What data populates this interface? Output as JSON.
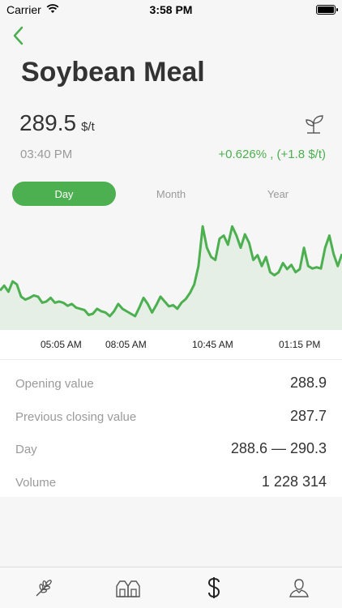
{
  "status_bar": {
    "carrier": "Carrier",
    "time": "3:58 PM"
  },
  "commodity": {
    "name": "Soybean Meal",
    "price": "289.5",
    "unit": "$/t",
    "time": "03:40 PM",
    "change": "+0.626% , (+1.8 $/t)"
  },
  "segments": [
    "Day",
    "Month",
    "Year"
  ],
  "selected_segment": "Day",
  "colors": {
    "accent": "#4caf50",
    "muted": "#9a9a9a",
    "text": "#333333"
  },
  "chart_data": {
    "type": "line",
    "xlabel": "",
    "ylabel": "",
    "tick_labels": [
      "05:05 AM",
      "08:05 AM",
      "10:45 AM",
      "01:15 PM"
    ],
    "grid": false,
    "values": [
      288.7,
      288.78,
      288.68,
      288.85,
      288.8,
      288.6,
      288.55,
      288.58,
      288.62,
      288.6,
      288.5,
      288.52,
      288.58,
      288.5,
      288.52,
      288.5,
      288.45,
      288.48,
      288.42,
      288.4,
      288.38,
      288.3,
      288.32,
      288.4,
      288.36,
      288.34,
      288.28,
      288.36,
      288.48,
      288.4,
      288.36,
      288.32,
      288.28,
      288.42,
      288.58,
      288.48,
      288.34,
      288.46,
      288.6,
      288.52,
      288.44,
      288.46,
      288.4,
      288.5,
      288.56,
      288.66,
      288.8,
      289.1,
      289.75,
      289.4,
      289.25,
      289.2,
      289.55,
      289.6,
      289.45,
      289.75,
      289.6,
      289.4,
      289.62,
      289.48,
      289.2,
      289.28,
      289.1,
      289.25,
      289.0,
      288.95,
      289.0,
      289.15,
      289.05,
      289.12,
      289.0,
      289.05,
      289.4,
      289.1,
      289.06,
      289.08,
      289.06,
      289.4,
      289.6,
      289.3,
      289.1,
      289.3
    ]
  },
  "stats": [
    {
      "label": "Opening value",
      "value": "288.9"
    },
    {
      "label": "Previous closing value",
      "value": "287.7"
    },
    {
      "label": "Day",
      "value": "288.6 — 290.3"
    },
    {
      "label": "Volume",
      "value": "1 228 314"
    }
  ],
  "tabs": [
    {
      "icon": "wheat-icon"
    },
    {
      "icon": "barn-icon"
    },
    {
      "icon": "dollar-icon"
    },
    {
      "icon": "user-icon"
    }
  ]
}
